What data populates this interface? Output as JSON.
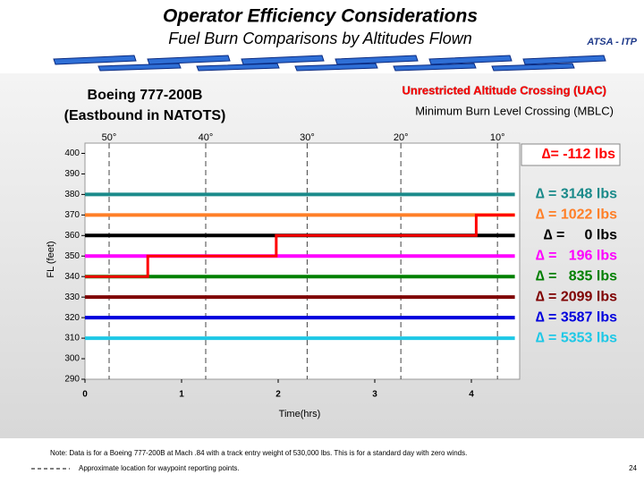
{
  "chart_data": {
    "type": "line",
    "title": "Operator Efficiency Considerations",
    "subtitle": "Fuel Burn Comparisons by Altitudes Flown",
    "org": "ATSA - ITP",
    "aircraft": [
      "Boeing 777-200B",
      "(Eastbound in NATOTS)"
    ],
    "mblc_label": "Minimum Burn Level Crossing (MBLC)",
    "x_label": "Time(hrs)",
    "y_label": "FL (feet)",
    "xlim": [
      0,
      4.5
    ],
    "xticks": [
      0,
      1,
      2,
      3,
      4
    ],
    "ylim": [
      290,
      405
    ],
    "yticks": [
      290,
      300,
      310,
      320,
      330,
      340,
      350,
      360,
      370,
      380,
      390,
      400
    ],
    "waypoints": [
      {
        "x": 0.25,
        "label": "50°"
      },
      {
        "x": 1.25,
        "label": "40°"
      },
      {
        "x": 2.3,
        "label": "30°"
      },
      {
        "x": 3.27,
        "label": "20°"
      },
      {
        "x": 4.27,
        "label": "10°"
      }
    ],
    "series": [
      {
        "name": "Unrestricted Altitude Crossing (UAC)",
        "color": "#ff0000",
        "delta_label": "∆= -112 lbs",
        "x": [
          0,
          0.65,
          0.65,
          1.98,
          1.98,
          4.05,
          4.05,
          4.45
        ],
        "values": [
          340,
          340,
          350,
          350,
          360,
          360,
          370,
          370
        ]
      },
      {
        "color": "#1a8a8a",
        "delta_label": "∆ = 3148 lbs",
        "x": [
          0,
          4.45
        ],
        "values": [
          380,
          380
        ]
      },
      {
        "color": "#ff7f27",
        "delta_label": "∆ = 1022 lbs",
        "x": [
          0,
          4.45
        ],
        "values": [
          370,
          370
        ]
      },
      {
        "color": "#000000",
        "delta_label": "∆ =     0 lbs",
        "x": [
          0,
          4.45
        ],
        "values": [
          360,
          360
        ]
      },
      {
        "color": "#ff00ff",
        "delta_label": "∆ =   196 lbs",
        "x": [
          0,
          4.45
        ],
        "values": [
          350,
          350
        ]
      },
      {
        "color": "#008000",
        "delta_label": "∆ =   835 lbs",
        "x": [
          0,
          4.45
        ],
        "values": [
          340,
          340
        ]
      },
      {
        "color": "#7f0000",
        "delta_label": "∆ = 2099 lbs",
        "x": [
          0,
          4.45
        ],
        "values": [
          330,
          330
        ]
      },
      {
        "color": "#0000dd",
        "delta_label": "∆ = 3587 lbs",
        "x": [
          0,
          4.45
        ],
        "values": [
          320,
          320
        ]
      },
      {
        "color": "#1ec8e6",
        "delta_label": "∆ = 5353 lbs",
        "x": [
          0,
          4.45
        ],
        "values": [
          310,
          310
        ]
      }
    ],
    "note": "Note: Data is for a Boeing 777-200B at Mach .84 with a track entry weight of 530,000 lbs.  This is for a standard day with zero winds.",
    "waypoint_legend": "Approximate location for waypoint reporting points.",
    "page_number": "24"
  }
}
